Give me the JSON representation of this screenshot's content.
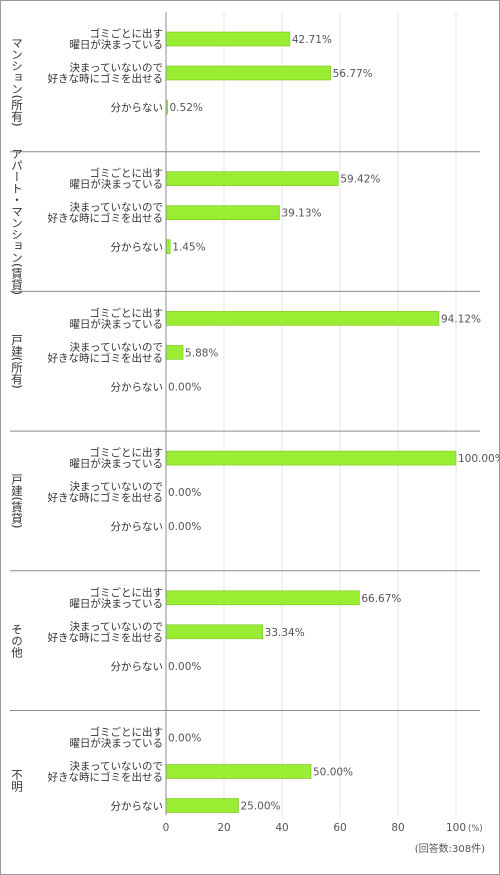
{
  "chart_data": {
    "type": "bar",
    "orientation": "horizontal",
    "unit": "(%)",
    "note": "(回答数:308件)",
    "xlim": [
      0,
      100
    ],
    "xticks": [
      "0",
      "20",
      "40",
      "60",
      "80",
      "100"
    ],
    "bar_color": "#99ee33",
    "groups": [
      {
        "name": "マンション(所有)",
        "items": [
          {
            "label": [
              "ゴミごとに出す",
              "曜日が決まっている"
            ],
            "value": 42.71,
            "value_label": "42.71%"
          },
          {
            "label": [
              "決まっていないので",
              "好きな時にゴミを出せる"
            ],
            "value": 56.77,
            "value_label": "56.77%"
          },
          {
            "label": [
              "分からない"
            ],
            "value": 0.52,
            "value_label": "0.52%"
          }
        ]
      },
      {
        "name": "アパート・マンション(賃貸)",
        "items": [
          {
            "label": [
              "ゴミごとに出す",
              "曜日が決まっている"
            ],
            "value": 59.42,
            "value_label": "59.42%"
          },
          {
            "label": [
              "決まっていないので",
              "好きな時にゴミを出せる"
            ],
            "value": 39.13,
            "value_label": "39.13%"
          },
          {
            "label": [
              "分からない"
            ],
            "value": 1.45,
            "value_label": "1.45%"
          }
        ]
      },
      {
        "name": "戸建(所有)",
        "items": [
          {
            "label": [
              "ゴミごとに出す",
              "曜日が決まっている"
            ],
            "value": 94.12,
            "value_label": "94.12%"
          },
          {
            "label": [
              "決まっていないので",
              "好きな時にゴミを出せる"
            ],
            "value": 5.88,
            "value_label": "5.88%"
          },
          {
            "label": [
              "分からない"
            ],
            "value": 0.0,
            "value_label": "0.00%"
          }
        ]
      },
      {
        "name": "戸建(賃貸)",
        "items": [
          {
            "label": [
              "ゴミごとに出す",
              "曜日が決まっている"
            ],
            "value": 100.0,
            "value_label": "100.00%"
          },
          {
            "label": [
              "決まっていないので",
              "好きな時にゴミを出せる"
            ],
            "value": 0.0,
            "value_label": "0.00%"
          },
          {
            "label": [
              "分からない"
            ],
            "value": 0.0,
            "value_label": "0.00%"
          }
        ]
      },
      {
        "name": "その他",
        "items": [
          {
            "label": [
              "ゴミごとに出す",
              "曜日が決まっている"
            ],
            "value": 66.67,
            "value_label": "66.67%"
          },
          {
            "label": [
              "決まっていないので",
              "好きな時にゴミを出せる"
            ],
            "value": 33.34,
            "value_label": "33.34%"
          },
          {
            "label": [
              "分からない"
            ],
            "value": 0.0,
            "value_label": "0.00%"
          }
        ]
      },
      {
        "name": "不明",
        "items": [
          {
            "label": [
              "ゴミごとに出す",
              "曜日が決まっている"
            ],
            "value": 0.0,
            "value_label": "0.00%"
          },
          {
            "label": [
              "決まっていないので",
              "好きな時にゴミを出せる"
            ],
            "value": 50.0,
            "value_label": "50.00%"
          },
          {
            "label": [
              "分からない"
            ],
            "value": 25.0,
            "value_label": "25.00%"
          }
        ]
      }
    ]
  }
}
